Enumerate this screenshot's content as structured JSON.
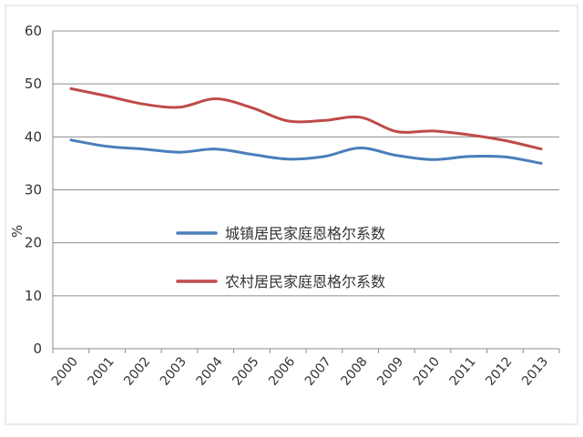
{
  "chart_data": {
    "type": "line",
    "title": "",
    "xlabel": "",
    "ylabel": "%",
    "ylim": [
      0,
      60
    ],
    "yticks": [
      0,
      10,
      20,
      30,
      40,
      50,
      60
    ],
    "categories": [
      "2000",
      "2001",
      "2002",
      "2003",
      "2004",
      "2005",
      "2006",
      "2007",
      "2008",
      "2009",
      "2010",
      "2011",
      "2012",
      "2013"
    ],
    "grid": true,
    "legend_placement": "center",
    "series": [
      {
        "name": "城镇居民家庭恩格尔系数",
        "color": "#4a7ebb",
        "values": [
          39.4,
          38.2,
          37.7,
          37.1,
          37.7,
          36.7,
          35.8,
          36.3,
          37.9,
          36.5,
          35.7,
          36.3,
          36.2,
          35.0
        ]
      },
      {
        "name": "农村居民家庭恩格尔系数",
        "color": "#be4b48",
        "values": [
          49.1,
          47.7,
          46.2,
          45.6,
          47.2,
          45.5,
          43.0,
          43.1,
          43.7,
          41.0,
          41.1,
          40.4,
          39.3,
          37.7
        ]
      }
    ]
  }
}
